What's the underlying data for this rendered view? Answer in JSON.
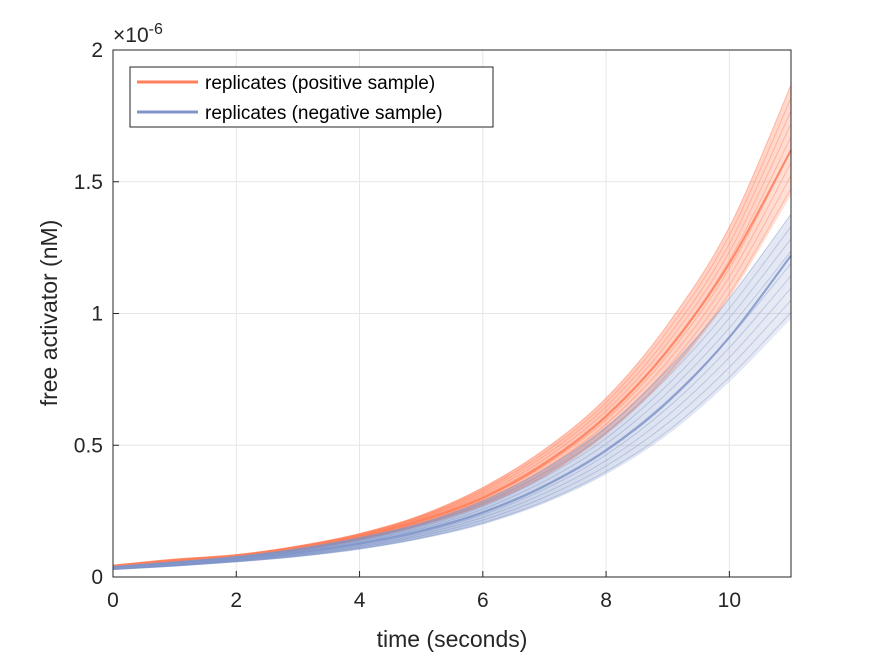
{
  "chart_data": {
    "type": "line",
    "title": "",
    "xlabel": "time (seconds)",
    "ylabel": "free activator (nM)",
    "y_exponent_label": "×10",
    "y_exponent_power": "-6",
    "y_multiplier": 1e-06,
    "xlim": [
      0,
      11
    ],
    "ylim": [
      0,
      2
    ],
    "x_ticks": [
      0,
      2,
      4,
      6,
      8,
      10
    ],
    "x_tick_labels": [
      "0",
      "2",
      "4",
      "6",
      "8",
      "10"
    ],
    "y_ticks": [
      0,
      0.5,
      1,
      1.5,
      2
    ],
    "y_tick_labels": [
      "0",
      "0.5",
      "1",
      "1.5",
      "2"
    ],
    "grid": true,
    "legend_position": "top-left",
    "x": [
      0,
      1,
      2,
      3,
      4,
      5,
      6,
      7,
      8,
      9,
      10,
      11
    ],
    "series": [
      {
        "name": "replicates (positive sample)",
        "color": "#FF7F5A",
        "band_upper": [
          0.045,
          0.068,
          0.085,
          0.118,
          0.165,
          0.235,
          0.34,
          0.485,
          0.68,
          0.96,
          1.33,
          1.87
        ],
        "median": [
          0.04,
          0.06,
          0.08,
          0.11,
          0.155,
          0.215,
          0.3,
          0.43,
          0.61,
          0.86,
          1.19,
          1.62
        ],
        "band_lower": [
          0.036,
          0.053,
          0.073,
          0.1,
          0.14,
          0.195,
          0.27,
          0.38,
          0.54,
          0.76,
          1.06,
          1.45
        ]
      },
      {
        "name": "replicates (negative sample)",
        "color": "#8195CA",
        "band_upper": [
          0.04,
          0.058,
          0.078,
          0.108,
          0.15,
          0.205,
          0.29,
          0.41,
          0.57,
          0.79,
          1.06,
          1.38
        ],
        "median": [
          0.034,
          0.05,
          0.068,
          0.093,
          0.127,
          0.175,
          0.245,
          0.345,
          0.48,
          0.665,
          0.91,
          1.22
        ],
        "band_lower": [
          0.028,
          0.041,
          0.057,
          0.077,
          0.105,
          0.145,
          0.2,
          0.28,
          0.39,
          0.54,
          0.74,
          0.98
        ]
      }
    ]
  }
}
